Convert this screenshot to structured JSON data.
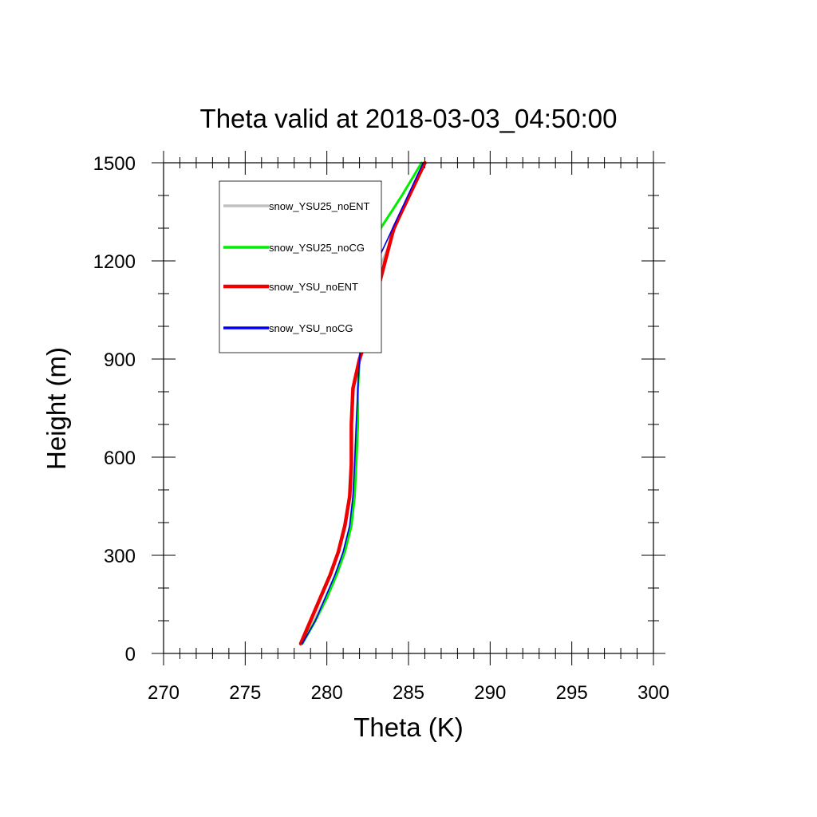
{
  "chart_data": {
    "type": "line",
    "title": "Theta valid at 2018-03-03_04:50:00",
    "xlabel": "Theta (K)",
    "ylabel": "Height (m)",
    "xlim": [
      270,
      300
    ],
    "ylim": [
      0,
      1500
    ],
    "x_ticks": [
      270,
      275,
      280,
      285,
      290,
      295,
      300
    ],
    "y_ticks": [
      0,
      300,
      600,
      900,
      1200,
      1500
    ],
    "legend_position": "top-left",
    "series": [
      {
        "name": "snow_YSU25_noENT",
        "color": "#c0c0c0",
        "width": 2.5,
        "points": [
          [
            278.4,
            30
          ],
          [
            279.2,
            100
          ],
          [
            279.9,
            170
          ],
          [
            280.5,
            240
          ],
          [
            281.0,
            310
          ],
          [
            281.4,
            390
          ],
          [
            281.6,
            480
          ],
          [
            281.7,
            580
          ],
          [
            281.8,
            700
          ],
          [
            281.9,
            810
          ],
          [
            282.0,
            900
          ],
          [
            282.3,
            1000
          ],
          [
            282.6,
            1100
          ],
          [
            283.4,
            1200
          ],
          [
            284.6,
            1350
          ],
          [
            286.0,
            1500
          ]
        ]
      },
      {
        "name": "snow_YSU25_noCG",
        "color": "#00ee00",
        "width": 3,
        "points": [
          [
            278.5,
            30
          ],
          [
            279.3,
            100
          ],
          [
            280.0,
            170
          ],
          [
            280.6,
            240
          ],
          [
            281.1,
            310
          ],
          [
            281.5,
            390
          ],
          [
            281.7,
            480
          ],
          [
            281.8,
            580
          ],
          [
            281.9,
            700
          ],
          [
            281.9,
            810
          ],
          [
            282.0,
            900
          ],
          [
            282.3,
            1030
          ],
          [
            282.6,
            1100
          ],
          [
            282.6,
            1200
          ],
          [
            283.3,
            1300
          ],
          [
            284.6,
            1400
          ],
          [
            285.8,
            1500
          ]
        ]
      },
      {
        "name": "snow_YSU_noENT",
        "color": "#ee0000",
        "width": 4.5,
        "points": [
          [
            278.4,
            30
          ],
          [
            279.0,
            100
          ],
          [
            279.6,
            170
          ],
          [
            280.2,
            240
          ],
          [
            280.7,
            310
          ],
          [
            281.1,
            390
          ],
          [
            281.4,
            480
          ],
          [
            281.5,
            580
          ],
          [
            281.5,
            700
          ],
          [
            281.6,
            810
          ],
          [
            282.0,
            900
          ],
          [
            282.6,
            990
          ],
          [
            283.0,
            1090
          ],
          [
            284.1,
            1300
          ],
          [
            286.0,
            1500
          ]
        ]
      },
      {
        "name": "snow_YSU_noCG",
        "color": "#0000ee",
        "width": 1.6,
        "points": [
          [
            278.5,
            30
          ],
          [
            279.3,
            100
          ],
          [
            279.9,
            170
          ],
          [
            280.5,
            240
          ],
          [
            281.0,
            310
          ],
          [
            281.4,
            390
          ],
          [
            281.6,
            480
          ],
          [
            281.7,
            580
          ],
          [
            281.8,
            700
          ],
          [
            281.9,
            810
          ],
          [
            282.0,
            900
          ],
          [
            282.4,
            1090
          ],
          [
            283.1,
            1200
          ],
          [
            284.5,
            1350
          ],
          [
            285.9,
            1500
          ]
        ]
      }
    ]
  }
}
